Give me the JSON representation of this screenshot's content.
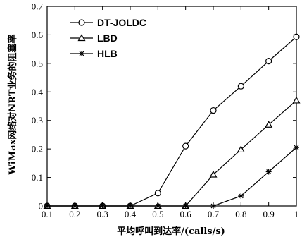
{
  "chart_data": {
    "type": "line",
    "title": "",
    "xlabel": "平均呼叫到达率/(calls/s)",
    "ylabel": "WiMax网络对NRT业务的阻塞率",
    "xlim": [
      0.1,
      1.0
    ],
    "ylim": [
      0,
      0.7
    ],
    "xticks": [
      "0.1",
      "0.2",
      "0.3",
      "0.4",
      "0.5",
      "0.6",
      "0.7",
      "0.8",
      "0.9",
      "1"
    ],
    "yticks": [
      "0",
      "0.1",
      "0.2",
      "0.3",
      "0.4",
      "0.5",
      "0.6",
      "0.7"
    ],
    "grid": false,
    "legend_position": "top-left",
    "x": [
      0.1,
      0.2,
      0.3,
      0.4,
      0.5,
      0.6,
      0.7,
      0.8,
      0.9,
      1.0
    ],
    "series": [
      {
        "name": "DT-JOLDC",
        "marker": "circle",
        "values": [
          0,
          0,
          0,
          0,
          0.045,
          0.21,
          0.335,
          0.42,
          0.508,
          0.593
        ]
      },
      {
        "name": "LBD",
        "marker": "triangle",
        "values": [
          0,
          0,
          0,
          0,
          0,
          0,
          0.11,
          0.198,
          0.285,
          0.37
        ]
      },
      {
        "name": "HLB",
        "marker": "star",
        "values": [
          0,
          0,
          0,
          0,
          0,
          0,
          0,
          0.035,
          0.12,
          0.205
        ]
      }
    ]
  }
}
